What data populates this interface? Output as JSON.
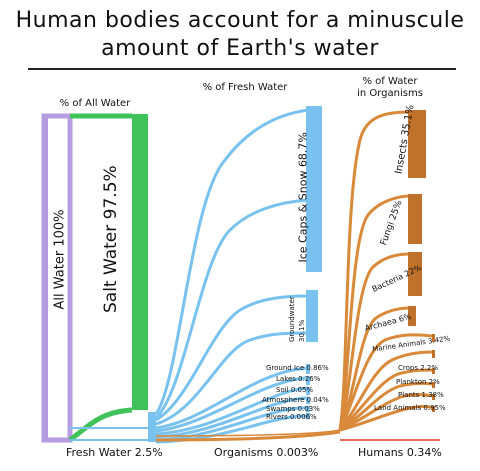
{
  "title": {
    "line1": "Human bodies account for a minuscule",
    "line2": "amount of Earth's water"
  },
  "columns": {
    "all_water": "% of All Water",
    "fresh_water": "% of Fresh Water",
    "organisms_line1": "% of Water",
    "organisms_line2": "in Organisms"
  },
  "nodes": {
    "all_water": "All Water 100%",
    "salt_water": "Salt Water 97.5%",
    "ice_caps": "Ice Caps & Snow 68.7%",
    "groundwater_l1": "Groundwater",
    "groundwater_l2": "30.1%",
    "ground_ice": "Ground Ice 0.86%",
    "lakes": "Lakes 0.26%",
    "soil": "Soil 0.05%",
    "atmosphere": "Atmosphere 0.04%",
    "swamps": "Swamps 0.03%",
    "rivers": "Rivers 0.006%",
    "insects": "Insects 35.1%",
    "fungi": "Fungi 25%",
    "bacteria": "Bacteria 22%",
    "archaea": "Archaea 6%",
    "marine_animals": "Marine Animals 3.42%",
    "crops": "Crops 2.2%",
    "plankton": "Plankton 2%",
    "plants": "Plants 1.38%",
    "land_animals": "Land Animals 0.95%"
  },
  "bottom": {
    "fresh_water": "Fresh Water 2.5%",
    "organisms": "Organisms 0.003%",
    "humans": "Humans 0.34%"
  },
  "colors": {
    "purple": "#b59be0",
    "green": "#3fc25a",
    "blue": "#79c2ef",
    "orange": "#d9893a",
    "brown": "#c0722a",
    "red": "#e8655a"
  }
}
